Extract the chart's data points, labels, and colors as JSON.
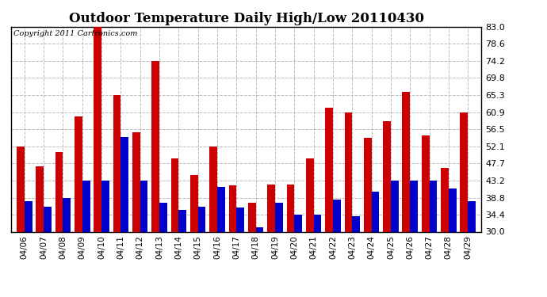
{
  "title": "Outdoor Temperature Daily High/Low 20110430",
  "copyright": "Copyright 2011 Cartronics.com",
  "dates": [
    "04/06",
    "04/07",
    "04/08",
    "04/09",
    "04/10",
    "04/11",
    "04/12",
    "04/13",
    "04/14",
    "04/15",
    "04/16",
    "04/17",
    "04/18",
    "04/19",
    "04/20",
    "04/21",
    "04/22",
    "04/23",
    "04/24",
    "04/25",
    "04/26",
    "04/27",
    "04/28",
    "04/29"
  ],
  "highs": [
    52.1,
    46.9,
    50.5,
    59.9,
    83.0,
    65.3,
    55.8,
    74.2,
    48.9,
    44.6,
    52.1,
    41.9,
    37.5,
    42.1,
    42.1,
    48.9,
    62.1,
    60.9,
    54.3,
    58.5,
    66.2,
    54.9,
    46.4,
    60.9
  ],
  "lows": [
    37.9,
    36.5,
    38.8,
    43.2,
    43.2,
    54.5,
    43.2,
    37.4,
    35.6,
    36.5,
    41.5,
    36.3,
    31.1,
    37.5,
    34.4,
    34.4,
    38.3,
    34.0,
    40.3,
    43.2,
    43.2,
    43.2,
    41.2,
    37.9
  ],
  "high_color": "#cc0000",
  "low_color": "#0000cc",
  "ylim_min": 30.0,
  "ylim_max": 83.0,
  "yticks": [
    30.0,
    34.4,
    38.8,
    43.2,
    47.7,
    52.1,
    56.5,
    60.9,
    65.3,
    69.8,
    74.2,
    78.6,
    83.0
  ],
  "background_color": "#ffffff",
  "grid_color": "#bbbbbb",
  "bar_width": 0.4,
  "title_fontsize": 12,
  "copyright_fontsize": 7,
  "tick_fontsize": 7.5,
  "ytick_fontsize": 8
}
